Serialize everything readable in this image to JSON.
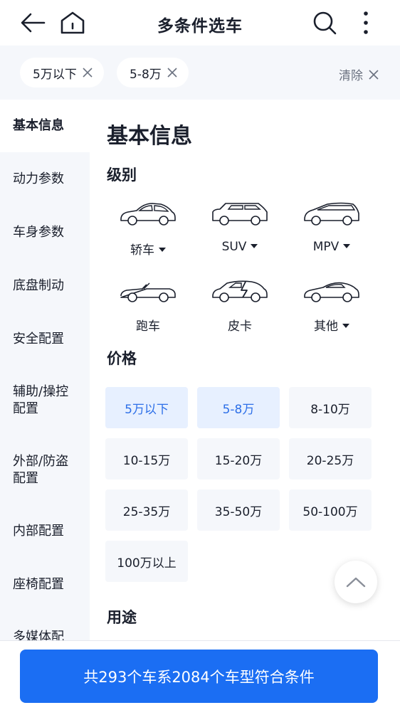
{
  "header": {
    "title": "多条件选车",
    "back_icon": "arrow-left-icon",
    "home_icon": "home-icon",
    "search_icon": "search-icon",
    "more_icon": "more-vertical-icon"
  },
  "filters": {
    "chips": [
      {
        "label": "5万以下"
      },
      {
        "label": "5-8万"
      }
    ],
    "clear_label": "清除"
  },
  "sidebar": {
    "items": [
      {
        "label": "基本信息",
        "active": true
      },
      {
        "label": "动力参数"
      },
      {
        "label": "车身参数"
      },
      {
        "label": "底盘制动"
      },
      {
        "label": "安全配置"
      },
      {
        "label_line1": "辅助/操控",
        "label_line2": "配置"
      },
      {
        "label_line1": "外部/防盗",
        "label_line2": "配置"
      },
      {
        "label": "内部配置"
      },
      {
        "label": "座椅配置"
      },
      {
        "label": "多媒体配"
      }
    ]
  },
  "main": {
    "section_title": "基本信息",
    "level": {
      "title": "级别",
      "types": [
        {
          "label": "轿车",
          "dropdown": true,
          "icon": "sedan-icon"
        },
        {
          "label": "SUV",
          "dropdown": true,
          "icon": "suv-icon"
        },
        {
          "label": "MPV",
          "dropdown": true,
          "icon": "mpv-icon"
        },
        {
          "label": "跑车",
          "dropdown": false,
          "icon": "sports-car-icon"
        },
        {
          "label": "皮卡",
          "dropdown": false,
          "icon": "pickup-icon"
        },
        {
          "label": "其他",
          "dropdown": true,
          "icon": "other-car-icon"
        }
      ]
    },
    "price": {
      "title": "价格",
      "options": [
        {
          "label": "5万以下",
          "selected": true
        },
        {
          "label": "5-8万",
          "selected": true
        },
        {
          "label": "8-10万"
        },
        {
          "label": "10-15万"
        },
        {
          "label": "15-20万"
        },
        {
          "label": "20-25万"
        },
        {
          "label": "25-35万"
        },
        {
          "label": "35-50万"
        },
        {
          "label": "50-100万"
        },
        {
          "label": "100万以上"
        }
      ]
    },
    "usage": {
      "title": "用途"
    }
  },
  "colors": {
    "accent": "#1b6ef3",
    "selected_bg": "#e7f0ff",
    "selected_text": "#2d6fe8",
    "panel_bg": "#f5f7fb"
  },
  "cta": {
    "label": "共293个车系2084个车型符合条件"
  }
}
